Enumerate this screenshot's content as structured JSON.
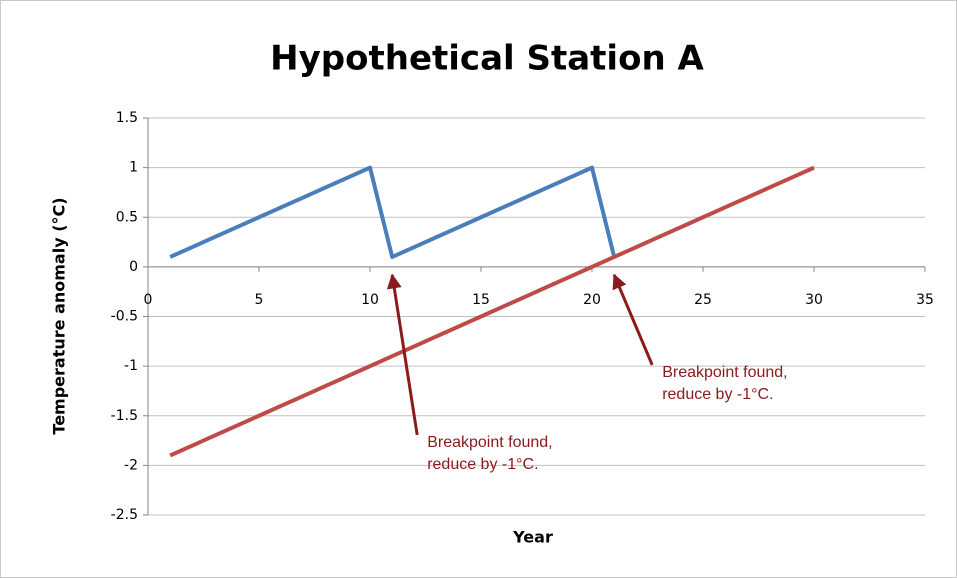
{
  "chart_data": {
    "type": "line",
    "title": "Hypothetical Station A",
    "xlabel": "Year",
    "ylabel": "Temperature anomaly (°C)",
    "xlim": [
      0,
      35
    ],
    "xticks": [
      0,
      5,
      10,
      15,
      20,
      25,
      30,
      35
    ],
    "ylim": [
      -2.5,
      1.5
    ],
    "yticks": [
      1.5,
      1,
      0.5,
      0,
      -0.5,
      -1,
      -1.5,
      -2,
      -2.5
    ],
    "grid": true,
    "series": [
      {
        "color": "#4a7ebb",
        "x": [
          1,
          2,
          3,
          4,
          5,
          6,
          7,
          8,
          9,
          10,
          11,
          12,
          13,
          14,
          15,
          16,
          17,
          18,
          19,
          20,
          21
        ],
        "values": [
          0.1,
          0.2,
          0.3,
          0.4,
          0.5,
          0.6,
          0.7,
          0.8,
          0.9,
          1.0,
          0.1,
          0.2,
          0.3,
          0.4,
          0.5,
          0.6,
          0.7,
          0.8,
          0.9,
          1.0,
          0.1
        ]
      },
      {
        "color": "#be4b48",
        "x": [
          1,
          2,
          3,
          4,
          5,
          6,
          7,
          8,
          9,
          10,
          11,
          12,
          13,
          14,
          15,
          16,
          17,
          18,
          19,
          20,
          21,
          22,
          23,
          24,
          25,
          26,
          27,
          28,
          29,
          30
        ],
        "values": [
          -1.9,
          -1.8,
          -1.7,
          -1.6,
          -1.5,
          -1.4,
          -1.3,
          -1.2,
          -1.1,
          -1.0,
          -0.9,
          -0.8,
          -0.7,
          -0.6,
          -0.5,
          -0.4,
          -0.3,
          -0.2,
          -0.1,
          0.0,
          0.1,
          0.2,
          0.3,
          0.4,
          0.5,
          0.6,
          0.7,
          0.8,
          0.9,
          1.0
        ]
      }
    ],
    "annotations": [
      {
        "lines": [
          "Breakpoint found,",
          "reduce by -1°C."
        ],
        "x": 11,
        "y": 0.1
      },
      {
        "lines": [
          "Breakpoint found,",
          "reduce by -1°C."
        ],
        "x": 21,
        "y": 0.1
      }
    ]
  }
}
